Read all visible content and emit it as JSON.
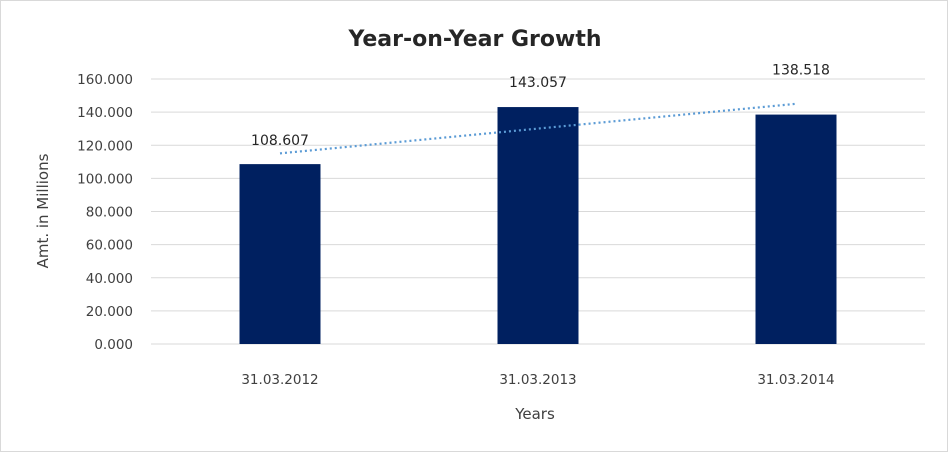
{
  "chart_data": {
    "type": "bar",
    "title": "Year-on-Year Growth",
    "xlabel": "Years",
    "ylabel": "Amt. in Millions",
    "categories": [
      "31.03.2012",
      "31.03.2013",
      "31.03.2014"
    ],
    "values": [
      108.607,
      143.057,
      138.518
    ],
    "data_labels": [
      "108.607",
      "143.057",
      "138.518"
    ],
    "ylim": [
      0,
      160
    ],
    "yticks": [
      "0.000",
      "20.000",
      "40.000",
      "60.000",
      "80.000",
      "100.000",
      "120.000",
      "140.000",
      "160.000"
    ],
    "grid": true,
    "legend": "none",
    "trendline": {
      "type": "linear",
      "style": "dotted"
    },
    "colors": {
      "bar": "#002060",
      "trendline": "#5b9bd5",
      "grid": "#d9d9d9"
    }
  }
}
